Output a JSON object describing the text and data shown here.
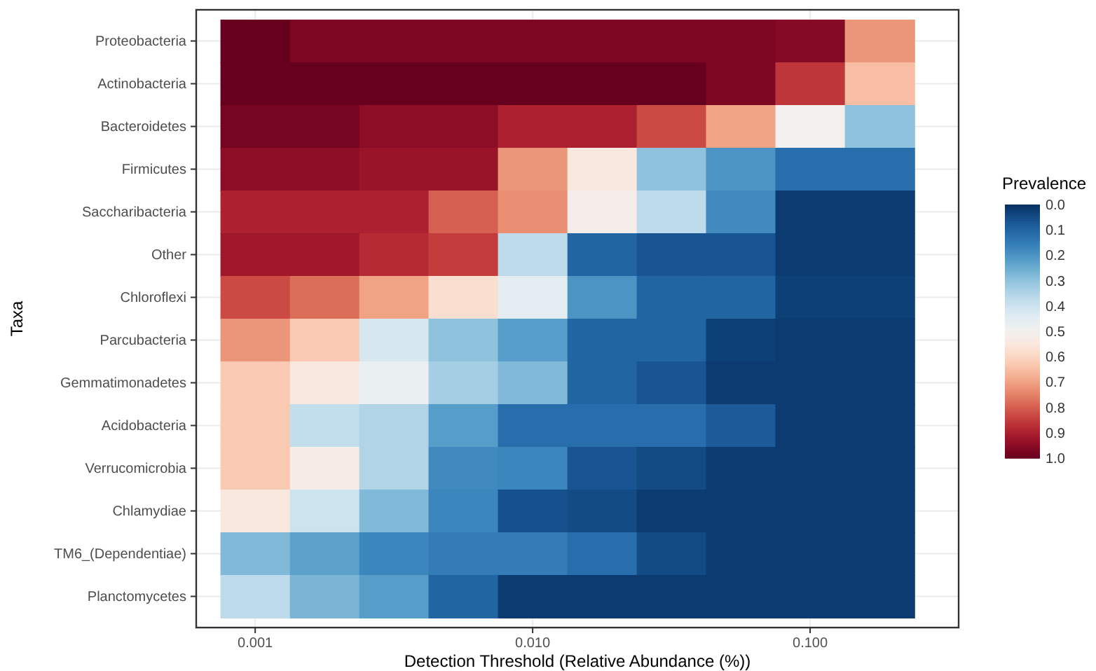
{
  "chart_data": {
    "type": "heatmap",
    "xlabel": "Detection Threshold (Relative Abundance (%))",
    "ylabel": "Taxa",
    "clabel": "Prevalence",
    "x": [
      0.001,
      0.00178,
      0.00316,
      0.00562,
      0.01,
      0.0178,
      0.0316,
      0.0562,
      0.1,
      0.178
    ],
    "log": "x",
    "xlim": [
      0.000613,
      0.343
    ],
    "xticks": [
      {
        "value": 0.001,
        "label": "0.001"
      },
      {
        "value": 0.01,
        "label": "0.010"
      },
      {
        "value": 0.1,
        "label": "0.100"
      }
    ],
    "y_categories": [
      "Proteobacteria",
      "Actinobacteria",
      "Bacteroidetes",
      "Firmicutes",
      "Saccharibacteria",
      "Other",
      "Chloroflexi",
      "Parcubacteria",
      "Gemmatimonadetes",
      "Acidobacteria",
      "Verrucomicrobia",
      "Chlamydiae",
      "TM6_(Dependentiae)",
      "Planctomycetes"
    ],
    "cells": [
      [
        1.0,
        0.97,
        0.97,
        0.97,
        0.97,
        0.97,
        0.97,
        0.97,
        0.96,
        0.72
      ],
      [
        1.0,
        1.0,
        1.0,
        1.0,
        1.0,
        1.0,
        1.0,
        0.97,
        0.86,
        0.65
      ],
      [
        0.98,
        0.98,
        0.95,
        0.95,
        0.9,
        0.9,
        0.83,
        0.7,
        0.5,
        0.3
      ],
      [
        0.95,
        0.95,
        0.93,
        0.93,
        0.72,
        0.55,
        0.3,
        0.2,
        0.12,
        0.12
      ],
      [
        0.9,
        0.9,
        0.9,
        0.8,
        0.73,
        0.52,
        0.37,
        0.18,
        0.02,
        0.02
      ],
      [
        0.92,
        0.92,
        0.88,
        0.85,
        0.37,
        0.1,
        0.07,
        0.07,
        0.02,
        0.02
      ],
      [
        0.83,
        0.78,
        0.7,
        0.58,
        0.45,
        0.2,
        0.1,
        0.1,
        0.03,
        0.03
      ],
      [
        0.72,
        0.63,
        0.42,
        0.3,
        0.22,
        0.1,
        0.1,
        0.03,
        0.02,
        0.02
      ],
      [
        0.63,
        0.55,
        0.47,
        0.33,
        0.28,
        0.1,
        0.07,
        0.02,
        0.02,
        0.02
      ],
      [
        0.63,
        0.38,
        0.35,
        0.22,
        0.12,
        0.12,
        0.12,
        0.08,
        0.02,
        0.02
      ],
      [
        0.63,
        0.53,
        0.35,
        0.18,
        0.17,
        0.07,
        0.05,
        0.02,
        0.02,
        0.02
      ],
      [
        0.55,
        0.4,
        0.28,
        0.17,
        0.06,
        0.05,
        0.02,
        0.02,
        0.02,
        0.02
      ],
      [
        0.28,
        0.23,
        0.17,
        0.15,
        0.15,
        0.12,
        0.05,
        0.02,
        0.02,
        0.02
      ],
      [
        0.37,
        0.27,
        0.22,
        0.1,
        0.02,
        0.02,
        0.02,
        0.02,
        0.02,
        0.02
      ]
    ],
    "clim": [
      0,
      1
    ],
    "cticks": [
      {
        "value": 0,
        "label": "0.0"
      },
      {
        "value": 0.1,
        "label": "0.1"
      },
      {
        "value": 0.2,
        "label": "0.2"
      },
      {
        "value": 0.3,
        "label": "0.3"
      },
      {
        "value": 0.4,
        "label": "0.4"
      },
      {
        "value": 0.5,
        "label": "0.5"
      },
      {
        "value": 0.6,
        "label": "0.6"
      },
      {
        "value": 0.7,
        "label": "0.7"
      },
      {
        "value": 0.8,
        "label": "0.8"
      },
      {
        "value": 0.9,
        "label": "0.9"
      },
      {
        "value": 1,
        "label": "1.0"
      }
    ],
    "grid": true
  }
}
